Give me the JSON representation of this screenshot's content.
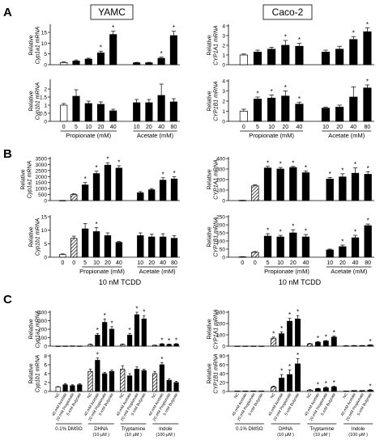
{
  "headers": {
    "left": "YAMC",
    "right": "Caco-2"
  },
  "panel_letters": [
    "A",
    "B",
    "C"
  ],
  "patterns": {
    "white": "#ffffff",
    "black": "#000000",
    "hatch": "hatch"
  },
  "chart_data": [
    {
      "id": "A1",
      "type": "bar",
      "panel": "A",
      "ylabel": [
        "Relative",
        "Cyp1a1 mRNA"
      ],
      "ylim": [
        0,
        18
      ],
      "yticks": [
        0,
        5,
        10,
        15
      ],
      "categories": [
        "0",
        "5",
        "10",
        "20",
        "40",
        "10",
        "20",
        "40",
        "80"
      ],
      "fills": [
        "white",
        "black",
        "black",
        "black",
        "black",
        "black",
        "black",
        "black",
        "black"
      ],
      "values": [
        1,
        1.7,
        2.6,
        5.5,
        14,
        0.9,
        0.9,
        3,
        13.5
      ],
      "errors": [
        0.3,
        0.5,
        0.4,
        0.8,
        1.5,
        0.2,
        0.2,
        0.5,
        2
      ],
      "stars": [
        false,
        false,
        false,
        true,
        true,
        false,
        false,
        true,
        true
      ],
      "xticklabels": false
    },
    {
      "id": "A2",
      "type": "bar",
      "panel": "A",
      "ylabel": [
        "Relative",
        "Cyp1b1 mRNA"
      ],
      "ylim": [
        0,
        2.5
      ],
      "yticks": [
        0,
        0.5,
        1,
        1.5,
        2
      ],
      "categories": [
        "0",
        "5",
        "10",
        "20",
        "40",
        "10",
        "20",
        "40",
        "80"
      ],
      "fills": [
        "white",
        "black",
        "black",
        "black",
        "black",
        "black",
        "black",
        "black",
        "black"
      ],
      "values": [
        1,
        1.55,
        1.1,
        1.05,
        0.65,
        1.15,
        1.15,
        1.6,
        1.2
      ],
      "errors": [
        0.1,
        0.4,
        0.15,
        0.15,
        0.1,
        0.2,
        0.2,
        0.7,
        0.2
      ],
      "stars": [
        false,
        false,
        false,
        false,
        false,
        false,
        false,
        false,
        false
      ],
      "xticklabels": true,
      "groups": [
        {
          "label": "Propionate (mM)",
          "from": 0,
          "to": 4
        },
        {
          "label": "Acetate (mM)",
          "from": 5,
          "to": 8
        }
      ]
    },
    {
      "id": "A3",
      "type": "bar",
      "panel": "A",
      "ylabel": [
        "Relative",
        "CYP1A1 mRNA"
      ],
      "ylim": [
        0,
        4
      ],
      "yticks": [
        0,
        1,
        2,
        3,
        4
      ],
      "categories": [
        "0",
        "5",
        "10",
        "20",
        "40",
        "10",
        "20",
        "40",
        "80"
      ],
      "fills": [
        "white",
        "black",
        "black",
        "black",
        "black",
        "black",
        "black",
        "black",
        "black"
      ],
      "values": [
        1,
        1.3,
        1.6,
        2,
        1.9,
        1.3,
        1.6,
        2.6,
        3.4
      ],
      "errors": [
        0.1,
        0.2,
        0.2,
        0.5,
        0.3,
        0.2,
        0.3,
        0.3,
        0.4
      ],
      "stars": [
        false,
        false,
        false,
        true,
        true,
        false,
        false,
        true,
        true
      ],
      "xticklabels": false
    },
    {
      "id": "A4",
      "type": "bar",
      "panel": "A",
      "ylabel": [
        "Relative",
        "CYP1B1 mRNA"
      ],
      "ylim": [
        0,
        4
      ],
      "yticks": [
        0,
        1,
        2,
        3,
        4
      ],
      "categories": [
        "0",
        "5",
        "10",
        "20",
        "40",
        "10",
        "20",
        "40",
        "80"
      ],
      "fills": [
        "white",
        "black",
        "black",
        "black",
        "black",
        "black",
        "black",
        "black",
        "black"
      ],
      "values": [
        1,
        2.2,
        2.3,
        2.5,
        1.7,
        1.3,
        1.4,
        2.4,
        3.3
      ],
      "errors": [
        0.2,
        0.2,
        0.3,
        0.5,
        0.2,
        0.1,
        0.2,
        1,
        0.3
      ],
      "stars": [
        false,
        true,
        true,
        true,
        true,
        false,
        false,
        false,
        true
      ],
      "xticklabels": true,
      "groups": [
        {
          "label": "Propionate (mM)",
          "from": 0,
          "to": 4
        },
        {
          "label": "Acetate (mM)",
          "from": 5,
          "to": 8
        }
      ]
    },
    {
      "id": "B1",
      "type": "bar",
      "panel": "B",
      "ylabel": [
        "Relative",
        "Cyp1a1 mRNA"
      ],
      "ylim": [
        0,
        3500
      ],
      "yticks": [
        0,
        500,
        1000,
        1500,
        2000,
        2500,
        3000,
        3500
      ],
      "categories": [
        "0",
        "0",
        "5",
        "10",
        "20",
        "40",
        "10",
        "20",
        "40",
        "80"
      ],
      "fills": [
        "white",
        "hatch",
        "black",
        "black",
        "black",
        "black",
        "black",
        "black",
        "black",
        "black"
      ],
      "values": [
        10,
        500,
        1300,
        2250,
        2950,
        2700,
        650,
        900,
        1700,
        1800
      ],
      "errors": [
        5,
        60,
        200,
        200,
        200,
        200,
        100,
        100,
        200,
        200
      ],
      "stars": [
        false,
        false,
        true,
        true,
        true,
        true,
        false,
        false,
        true,
        true
      ],
      "xticklabels": false
    },
    {
      "id": "B2",
      "type": "bar",
      "panel": "B",
      "ylabel": [
        "Relative",
        "Cyp1b1 mRNA"
      ],
      "ylim": [
        0,
        15
      ],
      "yticks": [
        0,
        5,
        10,
        15
      ],
      "categories": [
        "0",
        "0",
        "5",
        "10",
        "20",
        "40",
        "10",
        "20",
        "40",
        "80"
      ],
      "fills": [
        "white",
        "hatch",
        "black",
        "black",
        "black",
        "black",
        "black",
        "black",
        "black",
        "black"
      ],
      "values": [
        1,
        7,
        10.5,
        9.5,
        8,
        5.5,
        8,
        7.5,
        7.5,
        7
      ],
      "errors": [
        0.2,
        0.8,
        2,
        1.5,
        1,
        0.3,
        1,
        1,
        1.2,
        1
      ],
      "stars": [
        false,
        false,
        false,
        true,
        false,
        false,
        false,
        false,
        false,
        false
      ],
      "xticklabels": true,
      "groups": [
        {
          "label": "Propionate (mM)",
          "from": 2,
          "to": 5
        },
        {
          "label": "Acetate (mM)",
          "from": 6,
          "to": 9
        }
      ]
    },
    {
      "id": "B3",
      "type": "bar",
      "panel": "B",
      "ylabel": [
        "Relative",
        "CYP1A1 mRNA"
      ],
      "ylim": [
        0,
        400
      ],
      "yticks": [
        0,
        100,
        200,
        300,
        400
      ],
      "categories": [
        "0",
        "0",
        "5",
        "10",
        "20",
        "40",
        "10",
        "20",
        "40",
        "80"
      ],
      "fills": [
        "white",
        "hatch",
        "black",
        "black",
        "black",
        "black",
        "black",
        "black",
        "black",
        "black"
      ],
      "values": [
        2,
        140,
        310,
        300,
        315,
        265,
        205,
        225,
        260,
        250
      ],
      "errors": [
        1,
        10,
        15,
        15,
        10,
        15,
        15,
        30,
        50,
        25
      ],
      "stars": [
        false,
        false,
        true,
        true,
        true,
        true,
        true,
        true,
        true,
        true
      ],
      "xticklabels": false
    },
    {
      "id": "B4",
      "type": "bar",
      "panel": "B",
      "ylabel": [
        "Relative",
        "CYP1B1 mRNA"
      ],
      "ylim": [
        0,
        250
      ],
      "yticks": [
        0,
        50,
        100,
        150,
        200,
        250
      ],
      "categories": [
        "0",
        "0",
        "5",
        "10",
        "20",
        "40",
        "10",
        "20",
        "40",
        "80"
      ],
      "fills": [
        "white",
        "hatch",
        "black",
        "black",
        "black",
        "black",
        "black",
        "black",
        "black",
        "black"
      ],
      "values": [
        2,
        30,
        130,
        125,
        150,
        125,
        45,
        65,
        120,
        195
      ],
      "errors": [
        1,
        5,
        15,
        10,
        20,
        15,
        5,
        10,
        15,
        10
      ],
      "stars": [
        false,
        false,
        true,
        true,
        true,
        true,
        false,
        true,
        true,
        true
      ],
      "xticklabels": true,
      "groups": [
        {
          "label": "Propionate (mM)",
          "from": 2,
          "to": 5
        },
        {
          "label": "Acetate (mM)",
          "from": 6,
          "to": 9
        }
      ]
    },
    {
      "id": "C1",
      "type": "bar",
      "panel": "C",
      "ylabel": [
        "Relative",
        "Cyp1a1 mRNA"
      ],
      "ylim": [
        0,
        400
      ],
      "yticks": [
        0,
        100,
        200,
        300,
        400
      ],
      "fills": [
        "white",
        "black",
        "black",
        "black",
        "hatch",
        "black",
        "black",
        "black",
        "hatch",
        "black",
        "black",
        "black",
        "hatch",
        "black",
        "black",
        "black"
      ],
      "values": [
        1,
        2,
        3,
        2,
        20,
        130,
        280,
        200,
        20,
        130,
        370,
        320,
        10,
        25,
        20,
        25
      ],
      "errors": [
        0,
        0,
        0,
        0,
        5,
        20,
        40,
        30,
        5,
        20,
        50,
        40,
        3,
        5,
        5,
        5
      ],
      "stars": [
        false,
        false,
        false,
        false,
        false,
        true,
        true,
        true,
        false,
        true,
        true,
        true,
        false,
        true,
        true,
        true
      ],
      "xticklabels": false
    },
    {
      "id": "C2",
      "type": "bar",
      "panel": "C",
      "ylabel": [
        "Relative",
        "Cyp1b1 mRNA"
      ],
      "ylim": [
        0,
        8
      ],
      "yticks": [
        0,
        2,
        4,
        6,
        8
      ],
      "fills": [
        "white",
        "black",
        "black",
        "black",
        "hatch",
        "black",
        "black",
        "black",
        "hatch",
        "black",
        "black",
        "black",
        "hatch",
        "black",
        "black",
        "black"
      ],
      "values": [
        1,
        1.5,
        1.3,
        1.5,
        4.5,
        7,
        4,
        4.5,
        5,
        3.5,
        5,
        4.7,
        4,
        6,
        2.5,
        2
      ],
      "errors": [
        0.1,
        0.2,
        0.2,
        0.2,
        0.5,
        0.5,
        0.3,
        0.3,
        0.8,
        0.5,
        0.5,
        0.3,
        0.5,
        0.5,
        0.3,
        0.3
      ],
      "stars": [
        false,
        false,
        false,
        false,
        false,
        true,
        false,
        false,
        false,
        false,
        false,
        false,
        false,
        true,
        false,
        false
      ],
      "xticklabels": true,
      "treat_labels": [
        "NC",
        "40 mM Acetate",
        "20 mM Propionate",
        "5 mM Butyrate"
      ],
      "groups": [
        {
          "label": "0.1% DMSO",
          "from": 0,
          "to": 3
        },
        {
          "label": "DHNA",
          "sub": "(10 μM )",
          "from": 4,
          "to": 7
        },
        {
          "label": "Tryptamine",
          "sub": "(10 μM )",
          "from": 8,
          "to": 11
        },
        {
          "label": "Indole",
          "sub": "(100 μM )",
          "from": 12,
          "to": 15
        }
      ]
    },
    {
      "id": "C3",
      "type": "bar",
      "panel": "C",
      "ylabel": [
        "Relative",
        "CYP1A1 mRNA"
      ],
      "ylim": [
        0,
        300
      ],
      "yticks": [
        0,
        100,
        200,
        300
      ],
      "fills": [
        "white",
        "black",
        "black",
        "black",
        "hatch",
        "black",
        "black",
        "black",
        "hatch",
        "black",
        "black",
        "black",
        "hatch",
        "black",
        "black",
        "black"
      ],
      "values": [
        1,
        1,
        1,
        1,
        70,
        110,
        220,
        240,
        20,
        35,
        45,
        80,
        3,
        5,
        5,
        10
      ],
      "errors": [
        0,
        0,
        0,
        0,
        10,
        15,
        25,
        30,
        5,
        5,
        5,
        10,
        1,
        1,
        1,
        2
      ],
      "stars": [
        false,
        false,
        false,
        false,
        true,
        true,
        true,
        true,
        false,
        true,
        true,
        true,
        false,
        false,
        false,
        true
      ],
      "xticklabels": false
    },
    {
      "id": "C4",
      "type": "bar",
      "panel": "C",
      "ylabel": [
        "Relative",
        "CYP1B1 mRNA"
      ],
      "ylim": [
        0,
        80
      ],
      "yticks": [
        0,
        20,
        40,
        60,
        80
      ],
      "fills": [
        "white",
        "black",
        "black",
        "black",
        "hatch",
        "black",
        "black",
        "black",
        "hatch",
        "black",
        "black",
        "black",
        "hatch",
        "black",
        "black",
        "black"
      ],
      "values": [
        1,
        1,
        1,
        1,
        10,
        30,
        38,
        62,
        3,
        6,
        8,
        10,
        1,
        2,
        2,
        3
      ],
      "errors": [
        0,
        0,
        0,
        0,
        2,
        8,
        10,
        12,
        1,
        1,
        2,
        2,
        0,
        0,
        0,
        1
      ],
      "stars": [
        false,
        false,
        false,
        false,
        false,
        true,
        true,
        true,
        false,
        true,
        true,
        true,
        false,
        false,
        false,
        true
      ],
      "xticklabels": true,
      "treat_labels": [
        "NC",
        "40 mM Acetate",
        "20 mM Propionate",
        "5 mM Butyrate"
      ],
      "groups": [
        {
          "label": "0.1% DMSO",
          "from": 0,
          "to": 3
        },
        {
          "label": "DHNA",
          "sub": "(10 μM )",
          "from": 4,
          "to": 7
        },
        {
          "label": "Tryptamine",
          "sub": "(10 μM )",
          "from": 8,
          "to": 11
        },
        {
          "label": "Indole",
          "sub": "(100 μM )",
          "from": 12,
          "to": 15
        }
      ]
    }
  ],
  "tcdd_labels": [
    {
      "text": "10 nM TCDD"
    },
    {
      "text": "10 nM TCDD"
    }
  ],
  "star_symbol": "*"
}
